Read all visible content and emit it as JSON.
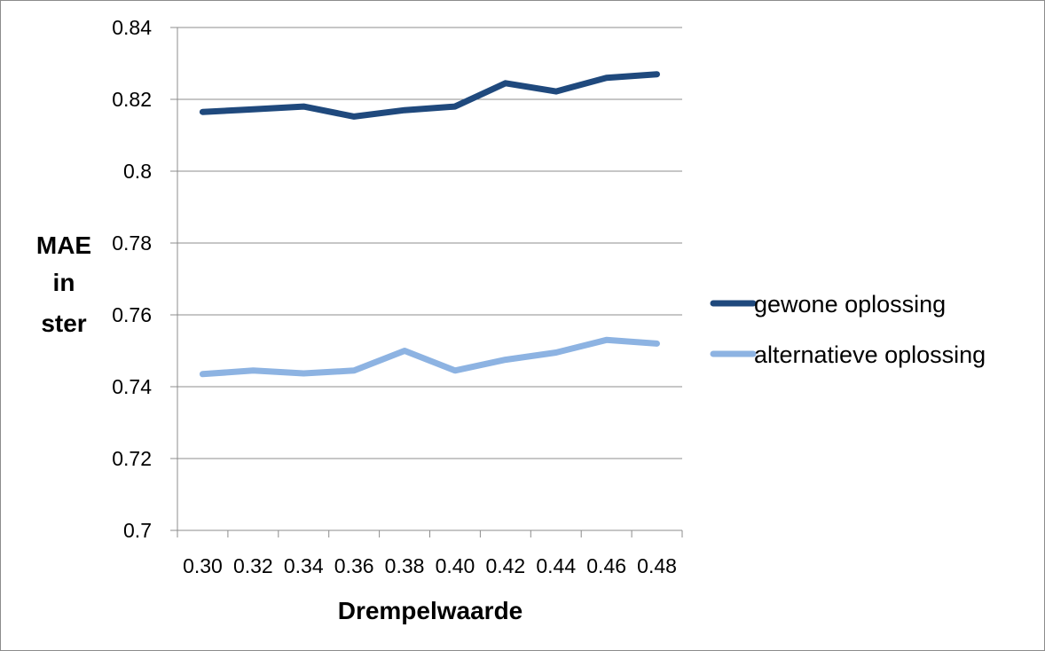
{
  "chart_data": {
    "type": "line",
    "x": [
      "0.30",
      "0.32",
      "0.34",
      "0.36",
      "0.38",
      "0.40",
      "0.42",
      "0.44",
      "0.46",
      "0.48"
    ],
    "series": [
      {
        "name": "gewone oplossing",
        "color": "#1f497d",
        "values": [
          0.8165,
          0.8172,
          0.818,
          0.8152,
          0.817,
          0.818,
          0.8245,
          0.8222,
          0.826,
          0.827
        ]
      },
      {
        "name": "alternatieve oplossing",
        "color": "#8db3e2",
        "values": [
          0.7435,
          0.7445,
          0.7437,
          0.7445,
          0.75,
          0.7445,
          0.7475,
          0.7495,
          0.753,
          0.752
        ]
      }
    ],
    "yticks": [
      "0.7",
      "0.72",
      "0.74",
      "0.76",
      "0.78",
      "0.8",
      "0.82",
      "0.84"
    ],
    "ylim": [
      0.7,
      0.84
    ],
    "xlabel": "Drempelwaarde",
    "ylabel_lines": [
      "MAE",
      "in",
      "ster"
    ],
    "grid": "horizontal",
    "legend": "right"
  }
}
